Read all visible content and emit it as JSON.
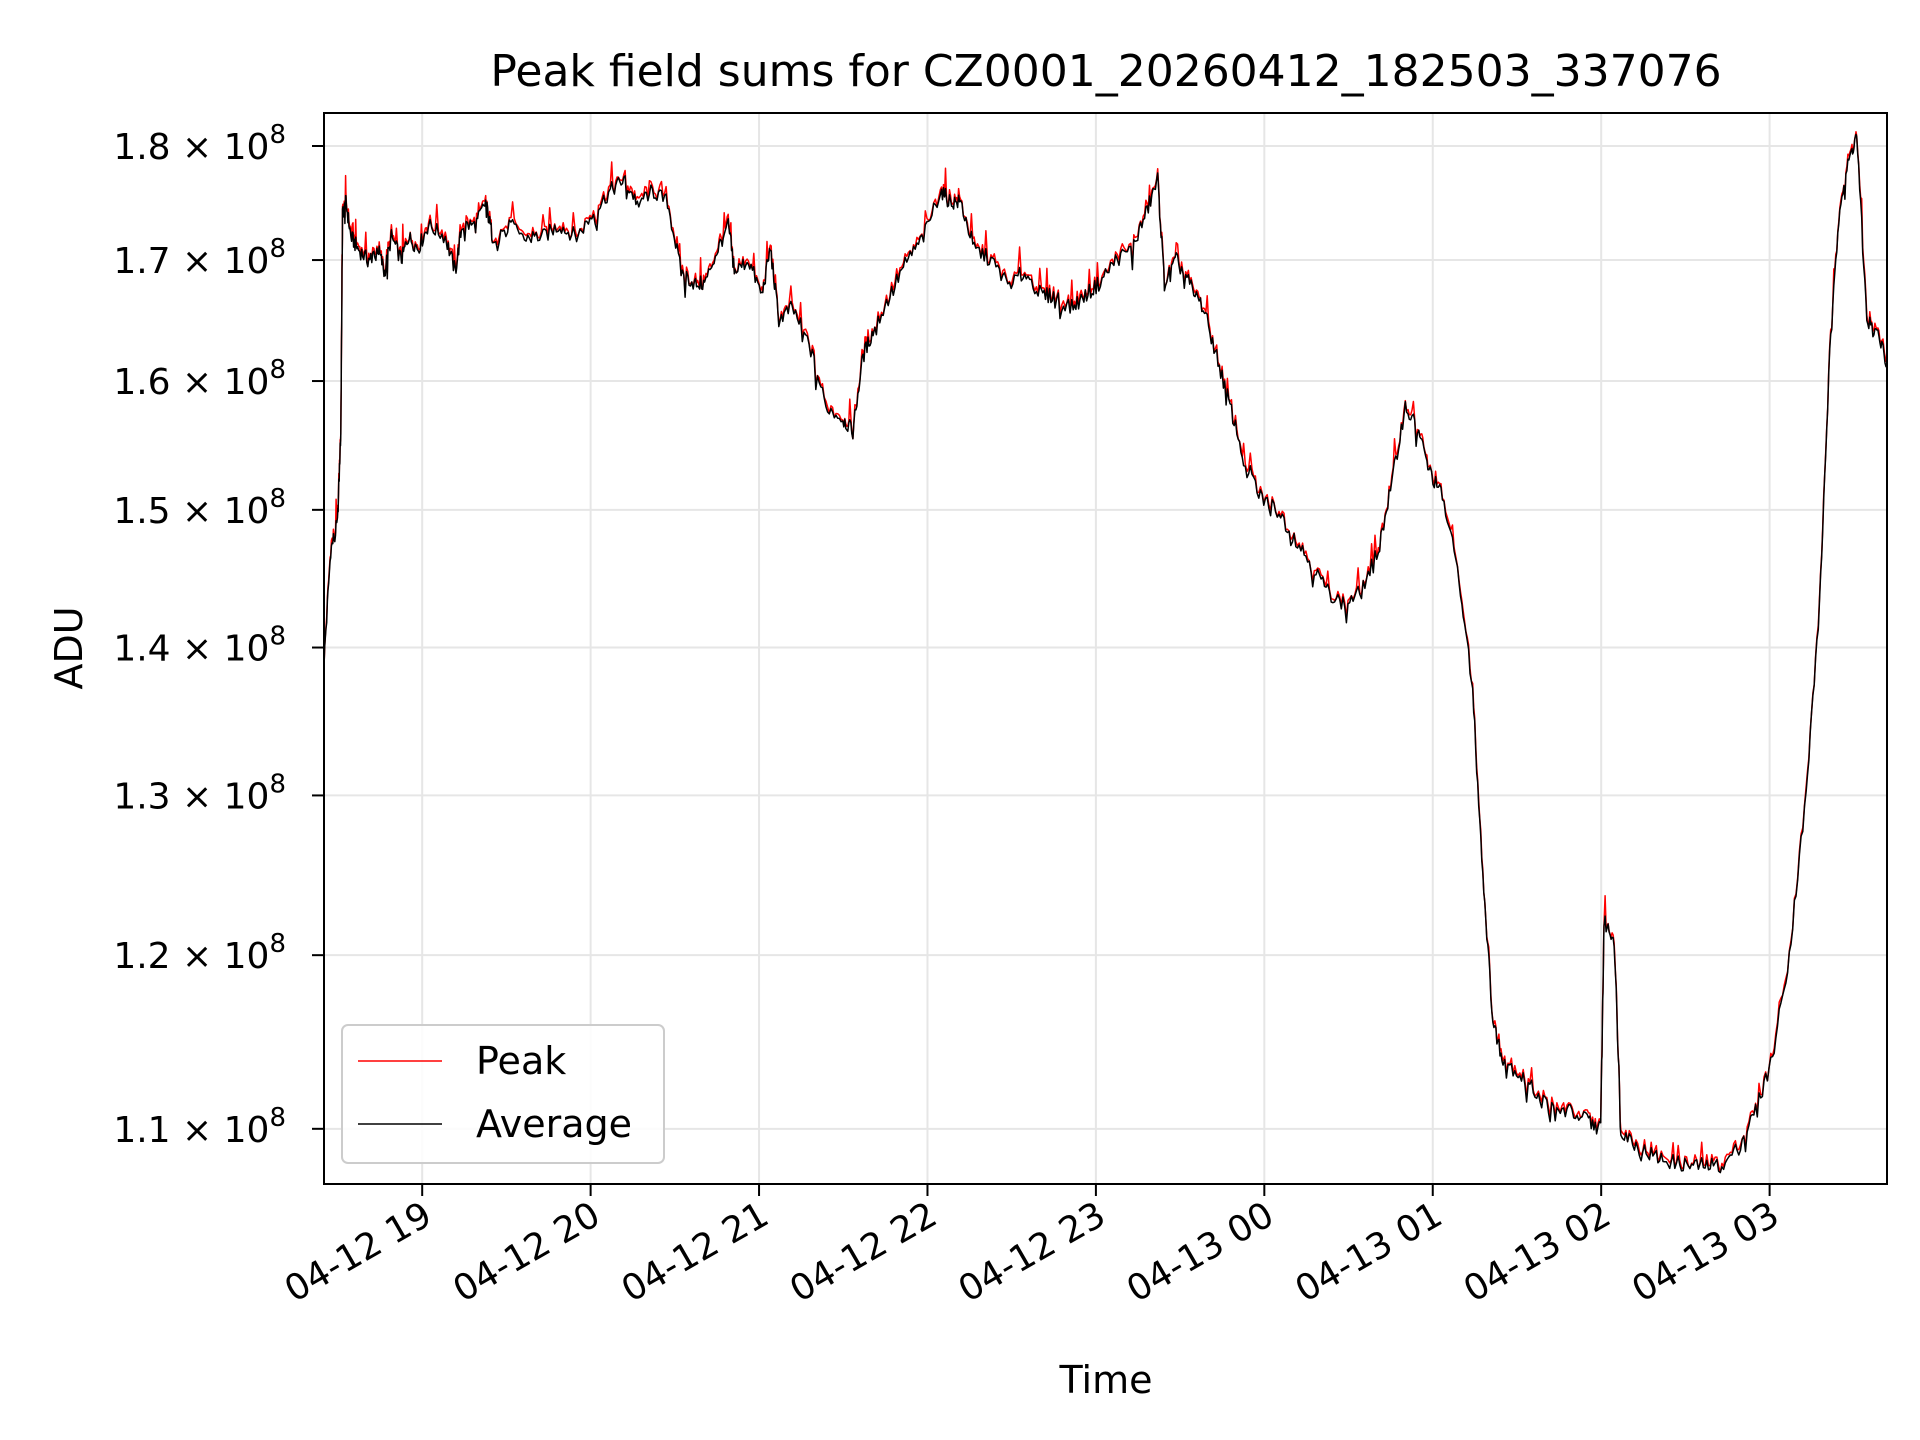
{
  "chart_data": {
    "type": "line",
    "title": "Peak field sums for CZ0001_20260412_182503_337076",
    "xlabel": "Time",
    "ylabel": "ADU",
    "yscale": "log",
    "grid": true,
    "legend_position": "lower-left",
    "x_unit": "hours since 04-12 18:25",
    "xlim": [
      0.0,
      9.28
    ],
    "ylim": [
      107000000,
      183000000
    ],
    "x_ticks": [
      {
        "x": 0.583,
        "label": "04-12 19"
      },
      {
        "x": 1.583,
        "label": "04-12 20"
      },
      {
        "x": 2.583,
        "label": "04-12 21"
      },
      {
        "x": 3.583,
        "label": "04-12 22"
      },
      {
        "x": 4.583,
        "label": "04-12 23"
      },
      {
        "x": 5.583,
        "label": "04-13 00"
      },
      {
        "x": 6.583,
        "label": "04-13 01"
      },
      {
        "x": 7.583,
        "label": "04-13 02"
      },
      {
        "x": 8.583,
        "label": "04-13 03"
      }
    ],
    "y_ticks": [
      {
        "y": 110000000,
        "label": "1.1 × 10",
        "exp": "8"
      },
      {
        "y": 120000000,
        "label": "1.2 × 10",
        "exp": "8"
      },
      {
        "y": 130000000,
        "label": "1.3 × 10",
        "exp": "8"
      },
      {
        "y": 140000000,
        "label": "1.4 × 10",
        "exp": "8"
      },
      {
        "y": 150000000,
        "label": "1.5 × 10",
        "exp": "8"
      },
      {
        "y": 160000000,
        "label": "1.6 × 10",
        "exp": "8"
      },
      {
        "y": 170000000,
        "label": "1.7 × 10",
        "exp": "8"
      },
      {
        "y": 180000000,
        "label": "1.8 × 10",
        "exp": "8"
      }
    ],
    "series": [
      {
        "name": "Peak",
        "color": "#ff0000"
      },
      {
        "name": "Average",
        "color": "#000000"
      }
    ],
    "average_points": [
      [
        0.0,
        139000000
      ],
      [
        0.04,
        147000000
      ],
      [
        0.08,
        149000000
      ],
      [
        0.1,
        156000000
      ],
      [
        0.11,
        174000000
      ],
      [
        0.13,
        175000000
      ],
      [
        0.16,
        172000000
      ],
      [
        0.2,
        171000000
      ],
      [
        0.26,
        170000000
      ],
      [
        0.32,
        171000000
      ],
      [
        0.36,
        169000000
      ],
      [
        0.4,
        172000000
      ],
      [
        0.46,
        170000000
      ],
      [
        0.5,
        172000000
      ],
      [
        0.56,
        171000000
      ],
      [
        0.62,
        173000000
      ],
      [
        0.72,
        172000000
      ],
      [
        0.78,
        169000000
      ],
      [
        0.82,
        173000000
      ],
      [
        0.9,
        173000000
      ],
      [
        0.96,
        175000000
      ],
      [
        1.0,
        172000000
      ],
      [
        1.1,
        173000000
      ],
      [
        1.2,
        172000000
      ],
      [
        1.3,
        172000000
      ],
      [
        1.4,
        173000000
      ],
      [
        1.5,
        172000000
      ],
      [
        1.6,
        174000000
      ],
      [
        1.7,
        176000000
      ],
      [
        1.78,
        177000000
      ],
      [
        1.86,
        175000000
      ],
      [
        1.95,
        176000000
      ],
      [
        2.04,
        175000000
      ],
      [
        2.12,
        169000000
      ],
      [
        2.2,
        168000000
      ],
      [
        2.26,
        168000000
      ],
      [
        2.34,
        171000000
      ],
      [
        2.4,
        173000000
      ],
      [
        2.44,
        169000000
      ],
      [
        2.52,
        170000000
      ],
      [
        2.6,
        167000000
      ],
      [
        2.65,
        171000000
      ],
      [
        2.7,
        165000000
      ],
      [
        2.78,
        166000000
      ],
      [
        2.88,
        163000000
      ],
      [
        2.98,
        158000000
      ],
      [
        3.08,
        157000000
      ],
      [
        3.14,
        156000000
      ],
      [
        3.2,
        162000000
      ],
      [
        3.26,
        164000000
      ],
      [
        3.36,
        167000000
      ],
      [
        3.46,
        170000000
      ],
      [
        3.56,
        172000000
      ],
      [
        3.66,
        176000000
      ],
      [
        3.72,
        175000000
      ],
      [
        3.78,
        175000000
      ],
      [
        3.86,
        171000000
      ],
      [
        3.96,
        170000000
      ],
      [
        4.06,
        168000000
      ],
      [
        4.16,
        169000000
      ],
      [
        4.26,
        167000000
      ],
      [
        4.34,
        167000000
      ],
      [
        4.44,
        166000000
      ],
      [
        4.52,
        167000000
      ],
      [
        4.6,
        168000000
      ],
      [
        4.7,
        170000000
      ],
      [
        4.8,
        171000000
      ],
      [
        4.88,
        174000000
      ],
      [
        4.95,
        177000000
      ],
      [
        4.99,
        168000000
      ],
      [
        5.06,
        170000000
      ],
      [
        5.14,
        168000000
      ],
      [
        5.22,
        166000000
      ],
      [
        5.3,
        162000000
      ],
      [
        5.38,
        158000000
      ],
      [
        5.46,
        154000000
      ],
      [
        5.56,
        151000000
      ],
      [
        5.66,
        150000000
      ],
      [
        5.76,
        148000000
      ],
      [
        5.86,
        146000000
      ],
      [
        5.96,
        144000000
      ],
      [
        6.06,
        143000000
      ],
      [
        6.16,
        144000000
      ],
      [
        6.26,
        147000000
      ],
      [
        6.34,
        152000000
      ],
      [
        6.42,
        158000000
      ],
      [
        6.5,
        156000000
      ],
      [
        6.56,
        153000000
      ],
      [
        6.64,
        151000000
      ],
      [
        6.74,
        145000000
      ],
      [
        6.82,
        137000000
      ],
      [
        6.88,
        125000000
      ],
      [
        6.94,
        116000000
      ],
      [
        7.0,
        114000000
      ],
      [
        7.1,
        113000000
      ],
      [
        7.2,
        112000000
      ],
      [
        7.3,
        111000000
      ],
      [
        7.4,
        111000000
      ],
      [
        7.5,
        110500000
      ],
      [
        7.58,
        110000000
      ],
      [
        7.6,
        122000000
      ],
      [
        7.66,
        121000000
      ],
      [
        7.7,
        110000000
      ],
      [
        7.8,
        109000000
      ],
      [
        7.9,
        108500000
      ],
      [
        8.0,
        108200000
      ],
      [
        8.1,
        108000000
      ],
      [
        8.2,
        108000000
      ],
      [
        8.3,
        108000000
      ],
      [
        8.4,
        109000000
      ],
      [
        8.5,
        111000000
      ],
      [
        8.6,
        114000000
      ],
      [
        8.7,
        120000000
      ],
      [
        8.8,
        130000000
      ],
      [
        8.88,
        143000000
      ],
      [
        8.94,
        162000000
      ],
      [
        9.0,
        175000000
      ],
      [
        9.06,
        179000000
      ],
      [
        9.1,
        181000000
      ],
      [
        9.16,
        165000000
      ],
      [
        9.22,
        164000000
      ],
      [
        9.28,
        161500000
      ]
    ]
  }
}
